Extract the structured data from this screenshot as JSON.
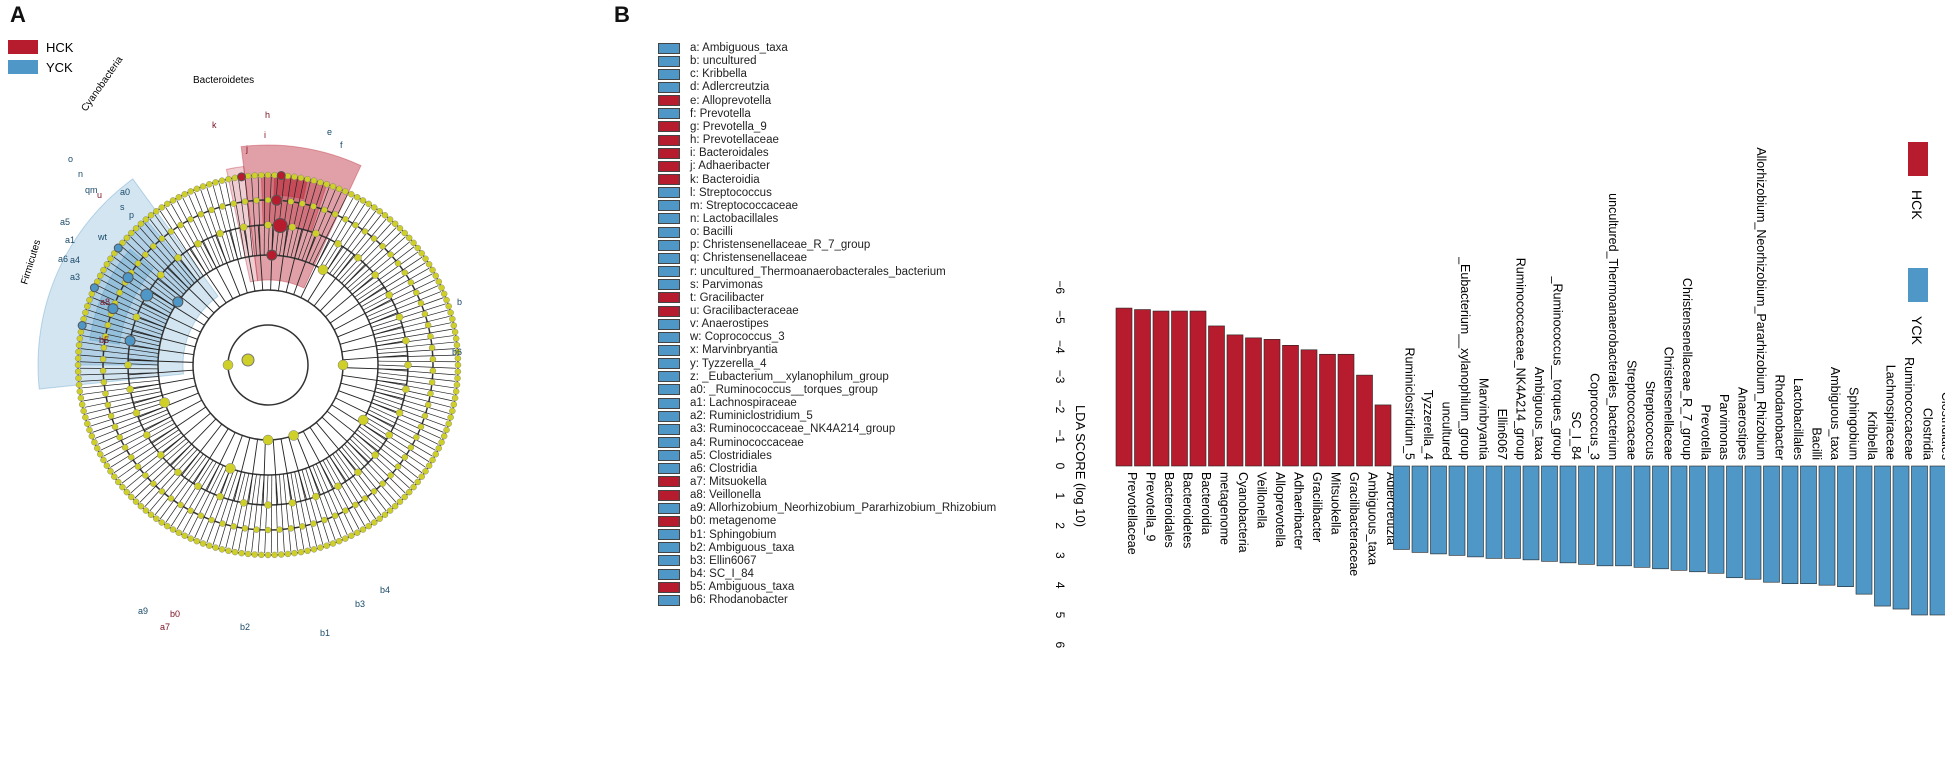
{
  "colors": {
    "hck": "#b71c2e",
    "yck": "#4f97c6",
    "node_yellow": "#cfcf2a"
  },
  "panel_a": {
    "label": "A",
    "legend": [
      {
        "name": "HCK",
        "color": "#b71c2e"
      },
      {
        "name": "YCK",
        "color": "#4f97c6"
      }
    ],
    "clade_labels": [
      "Bacteroidetes",
      "Cyanobacteria",
      "Firmicutes"
    ],
    "node_letters_hck": [
      "k",
      "j",
      "h",
      "i",
      "u",
      "a8",
      "b5",
      "b0",
      "a7"
    ],
    "node_letters_yck": [
      "o",
      "n",
      "qm",
      "a5",
      "a1",
      "a6",
      "a4",
      "a3",
      "wt",
      "s",
      "p",
      "b",
      "b6",
      "b4",
      "b3",
      "b2",
      "a9",
      "b1",
      "a0",
      "f",
      "e"
    ]
  },
  "panel_b": {
    "label": "B",
    "legend_entries": [
      {
        "key": "a: Ambiguous_taxa",
        "group": "yck"
      },
      {
        "key": "b: uncultured",
        "group": "yck"
      },
      {
        "key": "c: Kribbella",
        "group": "yck"
      },
      {
        "key": "d: Adlercreutzia",
        "group": "yck"
      },
      {
        "key": "e: Alloprevotella",
        "group": "hck"
      },
      {
        "key": "f: Prevotella",
        "group": "yck"
      },
      {
        "key": "g: Prevotella_9",
        "group": "hck"
      },
      {
        "key": "h: Prevotellaceae",
        "group": "hck"
      },
      {
        "key": "i: Bacteroidales",
        "group": "hck"
      },
      {
        "key": "j: Adhaeribacter",
        "group": "hck"
      },
      {
        "key": "k: Bacteroidia",
        "group": "hck"
      },
      {
        "key": "l: Streptococcus",
        "group": "yck"
      },
      {
        "key": "m: Streptococcaceae",
        "group": "yck"
      },
      {
        "key": "n: Lactobacillales",
        "group": "yck"
      },
      {
        "key": "o: Bacilli",
        "group": "yck"
      },
      {
        "key": "p: Christensenellaceae_R_7_group",
        "group": "yck"
      },
      {
        "key": "q: Christensenellaceae",
        "group": "yck"
      },
      {
        "key": "r: uncultured_Thermoanaerobacterales_bacterium",
        "group": "yck"
      },
      {
        "key": "s: Parvimonas",
        "group": "yck"
      },
      {
        "key": "t: Gracilibacter",
        "group": "hck"
      },
      {
        "key": "u: Gracilibacteraceae",
        "group": "hck"
      },
      {
        "key": "v: Anaerostipes",
        "group": "yck"
      },
      {
        "key": "w: Coprococcus_3",
        "group": "yck"
      },
      {
        "key": "x: Marvinbryantia",
        "group": "yck"
      },
      {
        "key": "y: Tyzzerella_4",
        "group": "yck"
      },
      {
        "key": "z: _Eubacterium__xylanophilum_group",
        "group": "yck"
      },
      {
        "key": "a0: _Ruminococcus__torques_group",
        "group": "yck"
      },
      {
        "key": "a1: Lachnospiraceae",
        "group": "yck"
      },
      {
        "key": "a2: Ruminiclostridium_5",
        "group": "yck"
      },
      {
        "key": "a3: Ruminococcaceae_NK4A214_group",
        "group": "yck"
      },
      {
        "key": "a4: Ruminococcaceae",
        "group": "yck"
      },
      {
        "key": "a5: Clostridiales",
        "group": "yck"
      },
      {
        "key": "a6: Clostridia",
        "group": "yck"
      },
      {
        "key": "a7: Mitsuokella",
        "group": "hck"
      },
      {
        "key": "a8: Veillonella",
        "group": "hck"
      },
      {
        "key": "a9: Allorhizobium_Neorhizobium_Pararhizobium_Rhizobium",
        "group": "yck"
      },
      {
        "key": "b0: metagenome",
        "group": "hck"
      },
      {
        "key": "b1: Sphingobium",
        "group": "yck"
      },
      {
        "key": "b2: Ambiguous_taxa",
        "group": "yck"
      },
      {
        "key": "b3: Ellin6067",
        "group": "yck"
      },
      {
        "key": "b4: SC_I_84",
        "group": "yck"
      },
      {
        "key": "b5: Ambiguous_taxa",
        "group": "hck"
      },
      {
        "key": "b6: Rhodanobacter",
        "group": "yck"
      }
    ]
  },
  "chart_data": {
    "type": "bar",
    "orientation": "vertical (rotated horizontal LDA bar chart)",
    "ylabel": "LDA SCORE (log 10)",
    "ylim": [
      -6,
      6
    ],
    "yticks": [
      -6,
      -5,
      -4,
      -3,
      -2,
      -1,
      0,
      1,
      2,
      3,
      4,
      5,
      6
    ],
    "legend": [
      {
        "name": "HCK",
        "color": "#b71c2e"
      },
      {
        "name": "YCK",
        "color": "#4f97c6"
      }
    ],
    "series": [
      {
        "name": "HCK",
        "categories": [
          "Prevotellaceae",
          "Prevotella_9",
          "Bacteroidales",
          "Bacteroidetes",
          "Bacteroidia",
          "metagenome",
          "Cyanobacteria",
          "Veillonella",
          "Alloprevotella",
          "Adhaeribacter",
          "Gracilibacter",
          "Mitsuokella",
          "Gracilibacteraceae",
          "Ambiguous_taxa",
          "Adlercreutzia"
        ],
        "values": [
          -5.3,
          -5.25,
          -5.2,
          -5.2,
          -5.2,
          -4.7,
          -4.4,
          -4.3,
          -4.25,
          -4.05,
          -3.9,
          -3.75,
          -3.75,
          -3.05,
          -2.05
        ]
      },
      {
        "name": "YCK",
        "categories": [
          "Ruminiclostridium_5",
          "Tyzzerella_4",
          "uncultured",
          "_Eubacterium__xylanophilum_group",
          "Marvinbryantia",
          "Ellin6067",
          "Ruminococcaceae_NK4A214_group",
          "Ambiguous_taxa",
          "_Ruminococcus__torques_group",
          "SC_I_84",
          "Coprococcus_3",
          "uncultured_Thermoanaerobacterales_bacterium",
          "Streptococcaceae",
          "Streptococcus",
          "Christensenellaceae",
          "Christensenellaceae_R_7_group",
          "Prevotella",
          "Parvimonas",
          "Anaerostipes",
          "Allorhizobium_Neorhizobium_Pararhizobium_Rhizobium",
          "Rhodanobacter",
          "Lactobacillales",
          "Bacilli",
          "Ambiguous_taxa",
          "Sphingobium",
          "Kribbella",
          "Lachnospiraceae",
          "Ruminococcaceae",
          "Clostridia",
          "Clostridiales",
          "Firmicutes"
        ],
        "values": [
          2.8,
          2.9,
          2.95,
          3.0,
          3.05,
          3.1,
          3.1,
          3.15,
          3.2,
          3.25,
          3.3,
          3.35,
          3.35,
          3.4,
          3.45,
          3.5,
          3.55,
          3.6,
          3.75,
          3.8,
          3.9,
          3.95,
          3.95,
          4.0,
          4.05,
          4.3,
          4.7,
          4.8,
          5.0,
          5.0,
          5.05
        ]
      }
    ]
  }
}
